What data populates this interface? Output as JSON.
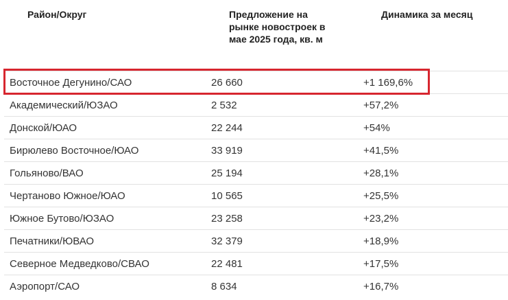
{
  "headers": [
    "Район/Округ",
    "Предложение на рынке новостроек в мае 2025 года, кв. м",
    "Динамика за месяц"
  ],
  "highlight_color": "#d7262f",
  "rows": [
    [
      "Восточное Дегунино/САО",
      "26 660",
      "+1 169,6%"
    ],
    [
      "Академический/ЮЗАО",
      "2 532",
      "+57,2%"
    ],
    [
      "Донской/ЮАО",
      "22 244",
      "+54%"
    ],
    [
      "Бирюлево Восточное/ЮАО",
      "33 919",
      "+41,5%"
    ],
    [
      "Гольяново/ВАО",
      "25 194",
      "+28,1%"
    ],
    [
      "Чертаново Южное/ЮАО",
      "10 565",
      "+25,5%"
    ],
    [
      "Южное Бутово/ЮЗАО",
      "23 258",
      "+23,2%"
    ],
    [
      "Печатники/ЮВАО",
      "32 379",
      "+18,9%"
    ],
    [
      "Северное Медведково/СВАО",
      "22 481",
      "+17,5%"
    ],
    [
      "Аэропорт/САО",
      "8 634",
      "+16,7%"
    ]
  ]
}
